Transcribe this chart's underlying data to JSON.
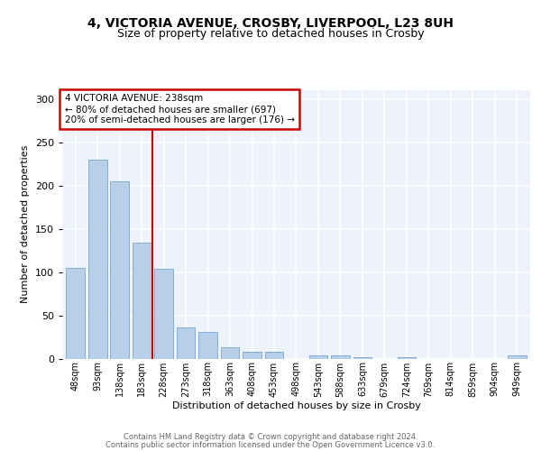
{
  "title1": "4, VICTORIA AVENUE, CROSBY, LIVERPOOL, L23 8UH",
  "title2": "Size of property relative to detached houses in Crosby",
  "xlabel": "Distribution of detached houses by size in Crosby",
  "ylabel": "Number of detached properties",
  "categories": [
    "48sqm",
    "93sqm",
    "138sqm",
    "183sqm",
    "228sqm",
    "273sqm",
    "318sqm",
    "363sqm",
    "408sqm",
    "453sqm",
    "498sqm",
    "543sqm",
    "588sqm",
    "633sqm",
    "679sqm",
    "724sqm",
    "769sqm",
    "814sqm",
    "859sqm",
    "904sqm",
    "949sqm"
  ],
  "values": [
    105,
    230,
    205,
    134,
    104,
    36,
    31,
    13,
    8,
    8,
    0,
    4,
    4,
    2,
    0,
    2,
    0,
    0,
    0,
    0,
    4
  ],
  "bar_color": "#b8cfe8",
  "bar_edgecolor": "#6699cc",
  "background_color": "#eef2fa",
  "grid_color": "#ffffff",
  "annotation_text_line1": "4 VICTORIA AVENUE: 238sqm",
  "annotation_text_line2": "← 80% of detached houses are smaller (697)",
  "annotation_text_line3": "20% of semi-detached houses are larger (176) →",
  "annotation_box_facecolor": "#ffffff",
  "annotation_box_edgecolor": "#cc0000",
  "vline_color": "#cc0000",
  "vline_x_index": 4,
  "ylim": [
    0,
    310
  ],
  "yticks": [
    0,
    50,
    100,
    150,
    200,
    250,
    300
  ],
  "footer1": "Contains HM Land Registry data © Crown copyright and database right 2024.",
  "footer2": "Contains public sector information licensed under the Open Government Licence v3.0.",
  "title1_fontsize": 10,
  "title2_fontsize": 9,
  "ylabel_fontsize": 8,
  "xlabel_fontsize": 8,
  "tick_fontsize": 7,
  "annotation_fontsize": 7.5,
  "footer_fontsize": 6,
  "bar_width": 0.85
}
